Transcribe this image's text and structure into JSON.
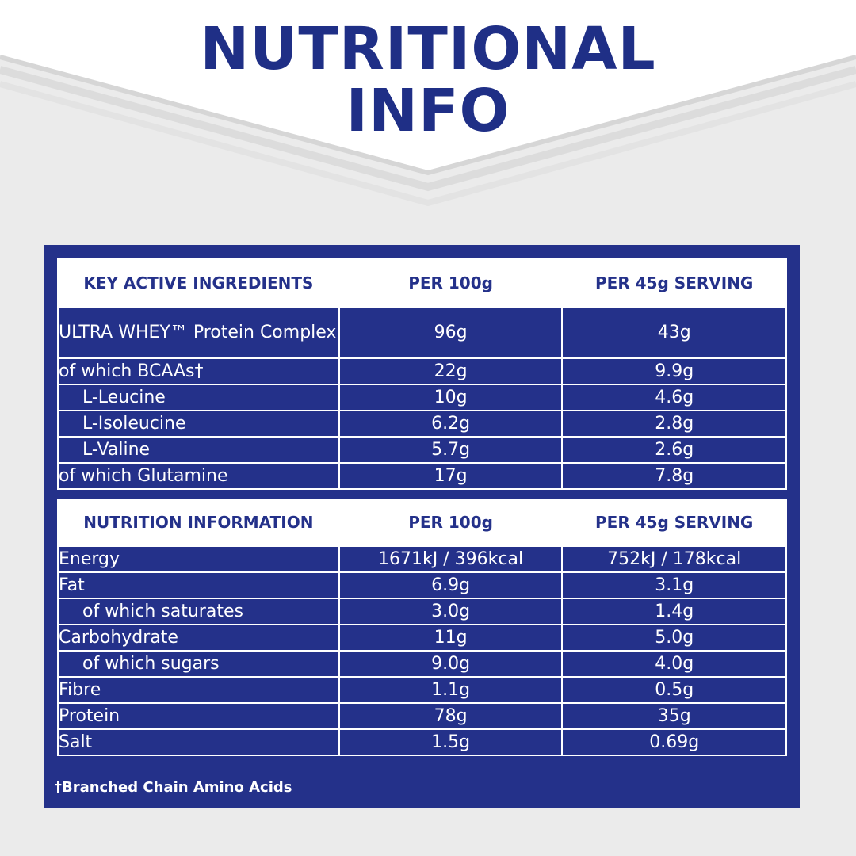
{
  "title": {
    "line1": "NUTRITIONAL",
    "line2": "INFO"
  },
  "colors": {
    "navy": "#24318a",
    "title": "#1f2f86",
    "background": "#ebebeb",
    "white": "#ffffff"
  },
  "key_ingredients": {
    "headers": [
      "KEY ACTIVE INGREDIENTS",
      "PER 100g",
      "PER 45g SERVING"
    ],
    "rows": [
      {
        "name": "ULTRA WHEY™ Protein Complex",
        "per100": "96g",
        "per45": "43g"
      },
      {
        "name": "of which BCAAs†",
        "per100": "22g",
        "per45": "9.9g"
      },
      {
        "name": "L-Leucine",
        "per100": "10g",
        "per45": "4.6g"
      },
      {
        "name": "L-Isoleucine",
        "per100": "6.2g",
        "per45": "2.8g"
      },
      {
        "name": "L-Valine",
        "per100": "5.7g",
        "per45": "2.6g"
      },
      {
        "name": "of which Glutamine",
        "per100": "17g",
        "per45": "7.8g"
      }
    ]
  },
  "nutrition": {
    "headers": [
      "NUTRITION INFORMATION",
      "PER 100g",
      "PER 45g SERVING"
    ],
    "rows": [
      {
        "name": "Energy",
        "per100": "1671kJ / 396kcal",
        "per45": "752kJ / 178kcal"
      },
      {
        "name": "Fat",
        "per100": "6.9g",
        "per45": "3.1g"
      },
      {
        "name": "of which saturates",
        "per100": "3.0g",
        "per45": "1.4g"
      },
      {
        "name": "Carbohydrate",
        "per100": "11g",
        "per45": "5.0g"
      },
      {
        "name": "of which sugars",
        "per100": "9.0g",
        "per45": "4.0g"
      },
      {
        "name": "Fibre",
        "per100": "1.1g",
        "per45": "0.5g"
      },
      {
        "name": "Protein",
        "per100": "78g",
        "per45": "35g"
      },
      {
        "name": "Salt",
        "per100": "1.5g",
        "per45": "0.69g"
      }
    ]
  },
  "footnote": "†Branched Chain Amino Acids"
}
